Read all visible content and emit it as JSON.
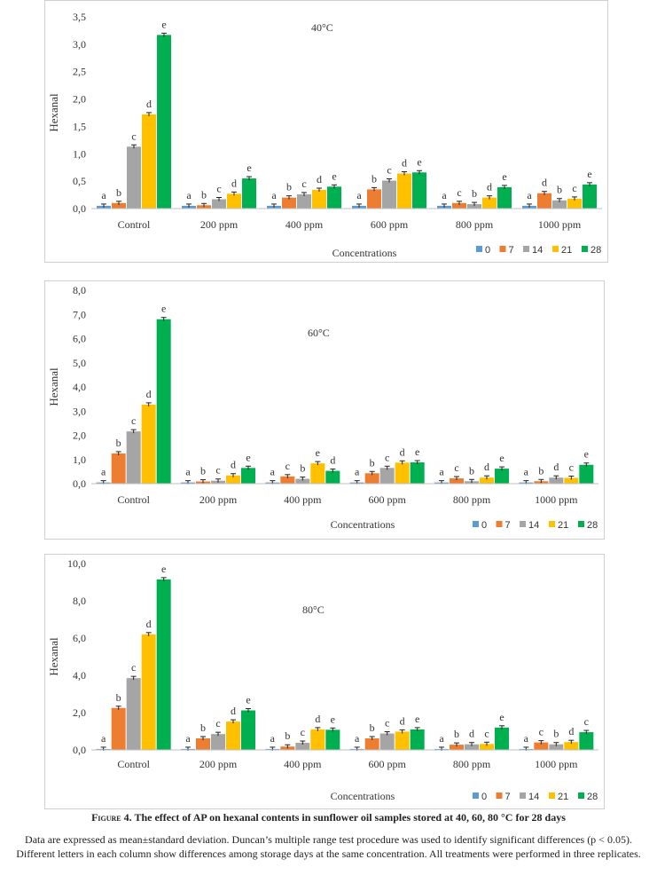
{
  "figure": {
    "label": "Figure 4.",
    "title": "The effect of AP on hexanal contents in sunflower oil samples stored at 40, 60, 80 °C for 28 days",
    "note": "Data are expressed as mean±standard deviation. Duncan’s multiple range test procedure was used to identify significant differences (p < 0.05). Different letters in each column show differences among storage days at the same concentration. All treatments were performed in three replicates."
  },
  "colors": {
    "0": "#5b9bd5",
    "7": "#ed7d31",
    "14": "#a5a5a5",
    "21": "#ffc000",
    "28": "#00b050"
  },
  "chart_data": [
    {
      "type": "bar",
      "annotation": "40°C",
      "ylabel": "Hexanal",
      "xlabel": "Concentrations",
      "categories": [
        "Control",
        "200 ppm",
        "400 ppm",
        "600 ppm",
        "800 ppm",
        "1000 ppm"
      ],
      "ylim": [
        0,
        3.5
      ],
      "yticks": [
        0,
        0.5,
        1.0,
        1.5,
        2.0,
        2.5,
        3.0,
        3.5
      ],
      "ytick_labels": [
        "0,0",
        "0,5",
        "1,0",
        "1,5",
        "2,0",
        "2,5",
        "3,0",
        "3,5"
      ],
      "legend_position": "bottom-right",
      "grid": false,
      "series": [
        {
          "name": "0",
          "values": [
            0.05,
            0.05,
            0.05,
            0.05,
            0.05,
            0.05
          ],
          "letters": [
            "a",
            "a",
            "a",
            "a",
            "a",
            "a"
          ]
        },
        {
          "name": "7",
          "values": [
            0.1,
            0.06,
            0.2,
            0.35,
            0.1,
            0.28
          ],
          "letters": [
            "b",
            "b",
            "b",
            "b",
            "c",
            "d"
          ]
        },
        {
          "name": "14",
          "values": [
            1.13,
            0.17,
            0.26,
            0.51,
            0.08,
            0.15
          ],
          "letters": [
            "c",
            "c",
            "c",
            "c",
            "b",
            "b"
          ]
        },
        {
          "name": "21",
          "values": [
            1.72,
            0.27,
            0.34,
            0.64,
            0.2,
            0.18
          ],
          "letters": [
            "d",
            "d",
            "d",
            "d",
            "d",
            "c"
          ]
        },
        {
          "name": "28",
          "values": [
            3.17,
            0.55,
            0.4,
            0.66,
            0.39,
            0.44
          ],
          "letters": [
            "e",
            "e",
            "e",
            "e",
            "e",
            "e"
          ]
        }
      ]
    },
    {
      "type": "bar",
      "annotation": "60°C",
      "ylabel": "Hexanal",
      "xlabel": "Concentrations",
      "categories": [
        "Control",
        "200 ppm",
        "400 ppm",
        "600 ppm",
        "800 ppm",
        "1000 ppm"
      ],
      "ylim": [
        0,
        8.0
      ],
      "yticks": [
        0,
        1,
        2,
        3,
        4,
        5,
        6,
        7,
        8
      ],
      "ytick_labels": [
        "0,0",
        "1,0",
        "2,0",
        "3,0",
        "4,0",
        "5,0",
        "6,0",
        "7,0",
        "8,0"
      ],
      "legend_position": "bottom-right",
      "grid": false,
      "series": [
        {
          "name": "0",
          "values": [
            0.05,
            0.05,
            0.05,
            0.05,
            0.05,
            0.05
          ],
          "letters": [
            "a",
            "a",
            "a",
            "a",
            "a",
            "a"
          ]
        },
        {
          "name": "7",
          "values": [
            1.25,
            0.09,
            0.3,
            0.43,
            0.22,
            0.1
          ],
          "letters": [
            "b",
            "b",
            "c",
            "b",
            "c",
            "b"
          ]
        },
        {
          "name": "14",
          "values": [
            2.16,
            0.12,
            0.2,
            0.65,
            0.1,
            0.25
          ],
          "letters": [
            "c",
            "c",
            "b",
            "c",
            "b",
            "d"
          ]
        },
        {
          "name": "21",
          "values": [
            3.27,
            0.34,
            0.84,
            0.87,
            0.25,
            0.24
          ],
          "letters": [
            "d",
            "d",
            "e",
            "d",
            "d",
            "c"
          ]
        },
        {
          "name": "28",
          "values": [
            6.8,
            0.65,
            0.53,
            0.88,
            0.62,
            0.78
          ],
          "letters": [
            "e",
            "e",
            "d",
            "e",
            "e",
            "e"
          ]
        }
      ]
    },
    {
      "type": "bar",
      "annotation": "80°C",
      "ylabel": "Hexanal",
      "xlabel": "Concentrations",
      "categories": [
        "Control",
        "200 ppm",
        "400 ppm",
        "600 ppm",
        "800 ppm",
        "1000 ppm"
      ],
      "ylim": [
        0,
        10.0
      ],
      "yticks": [
        0,
        2,
        4,
        6,
        8,
        10
      ],
      "ytick_labels": [
        "0,0",
        "2,0",
        "4,0",
        "6,0",
        "8,0",
        "10,0"
      ],
      "legend_position": "bottom-right",
      "grid": false,
      "series": [
        {
          "name": "0",
          "values": [
            0.05,
            0.05,
            0.05,
            0.05,
            0.05,
            0.05
          ],
          "letters": [
            "a",
            "a",
            "a",
            "a",
            "a",
            "a"
          ]
        },
        {
          "name": "7",
          "values": [
            2.25,
            0.62,
            0.18,
            0.62,
            0.28,
            0.4
          ],
          "letters": [
            "b",
            "b",
            "b",
            "b",
            "b",
            "c"
          ]
        },
        {
          "name": "14",
          "values": [
            3.85,
            0.85,
            0.38,
            0.88,
            0.3,
            0.3
          ],
          "letters": [
            "c",
            "c",
            "c",
            "c",
            "d",
            "b"
          ]
        },
        {
          "name": "21",
          "values": [
            6.2,
            1.52,
            1.1,
            0.98,
            0.32,
            0.42
          ],
          "letters": [
            "d",
            "d",
            "d",
            "d",
            "c",
            "d"
          ]
        },
        {
          "name": "28",
          "values": [
            9.15,
            2.12,
            1.08,
            1.1,
            1.2,
            0.95
          ],
          "letters": [
            "e",
            "e",
            "e",
            "e",
            "e",
            "c"
          ]
        }
      ]
    }
  ]
}
